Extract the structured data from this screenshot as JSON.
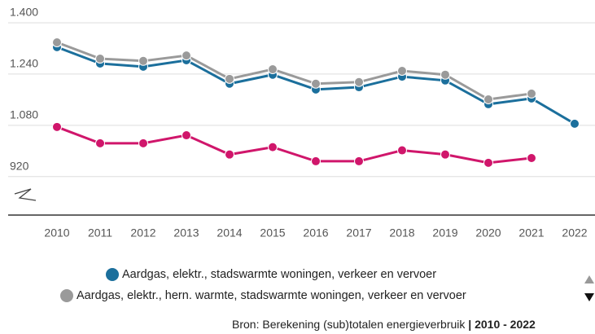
{
  "chart_data": {
    "type": "line",
    "categories": [
      "2010",
      "2011",
      "2012",
      "2013",
      "2014",
      "2015",
      "2016",
      "2017",
      "2018",
      "2019",
      "2020",
      "2021",
      "2022"
    ],
    "series": [
      {
        "name": "Aardgas, elektr., stadswarmte woningen, verkeer en vervoer",
        "color": "#1b6f9c",
        "values": [
          1324,
          1273,
          1263,
          1283,
          1210,
          1238,
          1192,
          1199,
          1232,
          1220,
          1146,
          1164,
          1085
        ]
      },
      {
        "name": "Aardgas, elektr., hern. warmte, stadswarmte woningen, verkeer en vervoer",
        "color": "#9a9a9a",
        "values": [
          1339,
          1288,
          1281,
          1298,
          1225,
          1255,
          1210,
          1215,
          1250,
          1238,
          1161,
          1179,
          null
        ]
      },
      {
        "color": "#d0166b",
        "values": [
          1075,
          1024,
          1024,
          1049,
          989,
          1012,
          968,
          968,
          1002,
          989,
          963,
          978,
          null
        ]
      }
    ],
    "ylim": [
      800,
      1400
    ],
    "yticks": [
      {
        "value": 1400,
        "label": "1.400"
      },
      {
        "value": 1240,
        "label": "1.240"
      },
      {
        "value": 1080,
        "label": "1.080"
      },
      920
    ],
    "grid": true,
    "source": "Bron: Berekening (sub)totalen energieverbruik",
    "source_period": "| 2010 - 2022"
  }
}
